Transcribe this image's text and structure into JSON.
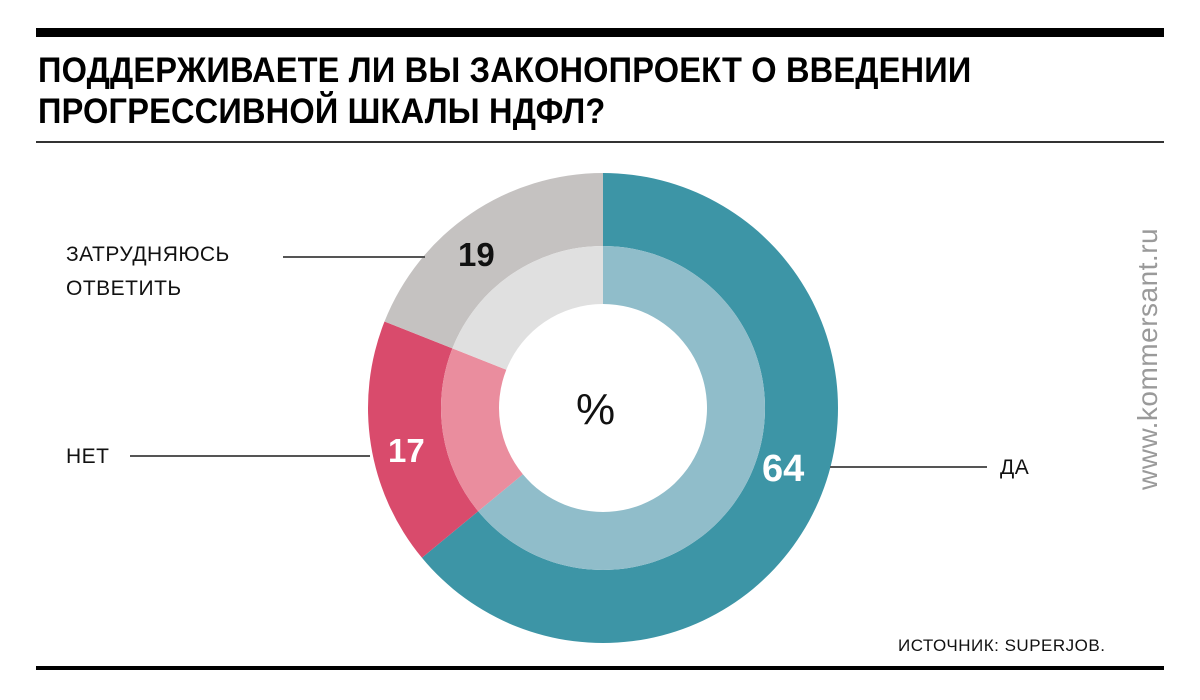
{
  "title": {
    "line1": "ПОДДЕРЖИВАЕТЕ ЛИ ВЫ ЗАКОНОПРОЕКТ О ВВЕДЕНИИ",
    "line2": "ПРОГРЕССИВНОЙ ШКАЛЫ НДФЛ?"
  },
  "source": "ИСТОЧНИК: SUPERJOB.",
  "watermark": "www.kommersant.ru",
  "center_label": "%",
  "labels": {
    "hard": {
      "line1": "ЗАТРУДНЯЮСЬ",
      "line2": "ОТВЕТИТЬ",
      "value": "19"
    },
    "no": {
      "line1": "НЕТ",
      "value": "17"
    },
    "yes": {
      "line1": "ДА",
      "value": "64"
    }
  },
  "colors": {
    "yes_outer": "#3d95a6",
    "yes_inner": "#90bdca",
    "no_outer": "#d94b6c",
    "no_inner": "#ea8d9e",
    "hard_outer": "#c5c2c1",
    "hard_inner": "#e0e0e0"
  },
  "chart_data": {
    "type": "pie",
    "subtype": "donut",
    "title": "ПОДДЕРЖИВАЕТЕ ЛИ ВЫ ЗАКОНОПРОЕКТ О ВВЕДЕНИИ ПРОГРЕССИВНОЙ ШКАЛЫ НДФЛ?",
    "unit": "%",
    "categories": [
      "ДА",
      "НЕТ",
      "ЗАТРУДНЯЮСЬ ОТВЕТИТЬ"
    ],
    "values": [
      64,
      17,
      19
    ],
    "colors": [
      "#3d95a6",
      "#d94b6c",
      "#c5c2c1"
    ],
    "source": "ИСТОЧНИК: SUPERJOB."
  }
}
